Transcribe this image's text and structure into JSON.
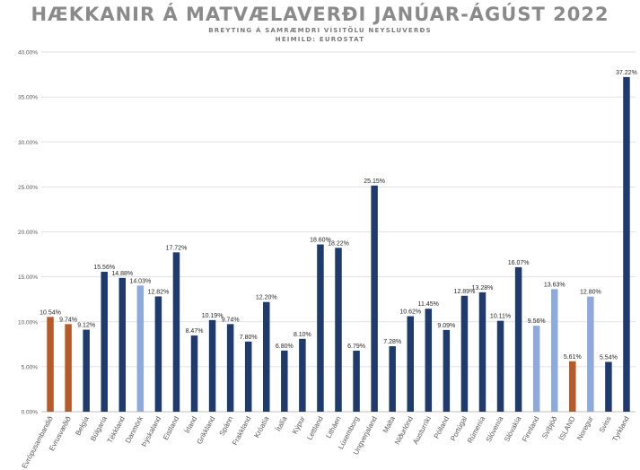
{
  "chart_data": {
    "type": "bar",
    "title": "HÆKKANIR Á MATVÆLAVERÐI JANÚAR-ÁGÚST 2022",
    "subtitle": "BREYTING Á SAMRÆMDRI VÍSITÖLU NEYSLUVERÐS",
    "source": "HEIMILD: EUROSTAT",
    "xlabel": "",
    "ylabel": "",
    "ylim": [
      0,
      40
    ],
    "yticks": [
      "0.00%",
      "5.00%",
      "10.00%",
      "15.00%",
      "20.00%",
      "25.00%",
      "30.00%",
      "35.00%",
      "40.00%"
    ],
    "grid": true,
    "categories": [
      "Evrópusambandið",
      "Evrusvæðið",
      "Belgía",
      "Búlgaría",
      "Tékkland",
      "Danmörk",
      "Þýskaland",
      "Eistland",
      "Írland",
      "Grikkland",
      "Spánn",
      "Frakkland",
      "Króatía",
      "Ítalía",
      "Kýpur",
      "Lettland",
      "Litháen",
      "Lúxemborg",
      "Ungverjaland",
      "Malta",
      "Niðurlönd",
      "Austurríki",
      "Pólland",
      "Portúgal",
      "Rúmenía",
      "Slóvenía",
      "Slóvakía",
      "Finnland",
      "Svíþjóð",
      "ÍSLAND",
      "Noregur",
      "Sviss",
      "Tyrkland"
    ],
    "values": [
      10.54,
      9.74,
      9.12,
      15.56,
      14.88,
      14.03,
      12.82,
      17.72,
      8.47,
      10.19,
      9.74,
      7.8,
      12.2,
      6.8,
      8.1,
      18.6,
      18.22,
      6.79,
      25.15,
      7.28,
      10.62,
      11.45,
      9.09,
      12.89,
      13.28,
      10.11,
      16.07,
      9.56,
      13.63,
      5.61,
      12.8,
      5.54,
      37.22
    ],
    "value_labels": [
      "10.54%",
      "9.74%",
      "9.12%",
      "15.56%",
      "14.88%",
      "14.03%",
      "12.82%",
      "17.72%",
      "8.47%",
      "10.19%",
      "9.74%",
      "7.80%",
      "12.20%",
      "6.80%",
      "8.10%",
      "18.60%",
      "18.22%",
      "6.79%",
      "25.15%",
      "7.28%",
      "10.62%",
      "11.45%",
      "9.09%",
      "12.89%",
      "13.28%",
      "10.11%",
      "16.07%",
      "9.56%",
      "13.63%",
      "5.61%",
      "12.80%",
      "5.54%",
      "37.22%"
    ],
    "bar_groups": [
      "highlight",
      "highlight",
      "euro",
      "eu",
      "eu",
      "nordic",
      "euro",
      "euro",
      "euro",
      "euro",
      "euro",
      "euro",
      "euro",
      "euro",
      "euro",
      "euro",
      "euro",
      "euro",
      "eu",
      "euro",
      "euro",
      "euro",
      "eu",
      "euro",
      "eu",
      "euro",
      "euro",
      "nordic",
      "nordic",
      "highlight",
      "nordic",
      "other",
      "other"
    ],
    "colors": {
      "euro": "#1f3b6e",
      "eu": "#1f3b6e",
      "other": "#1f3b6e",
      "nordic": "#8eaadb",
      "highlight": "#b8592a",
      "grid": "#d9d9d9",
      "axis_text": "#595959",
      "label_text": "#262626"
    }
  }
}
